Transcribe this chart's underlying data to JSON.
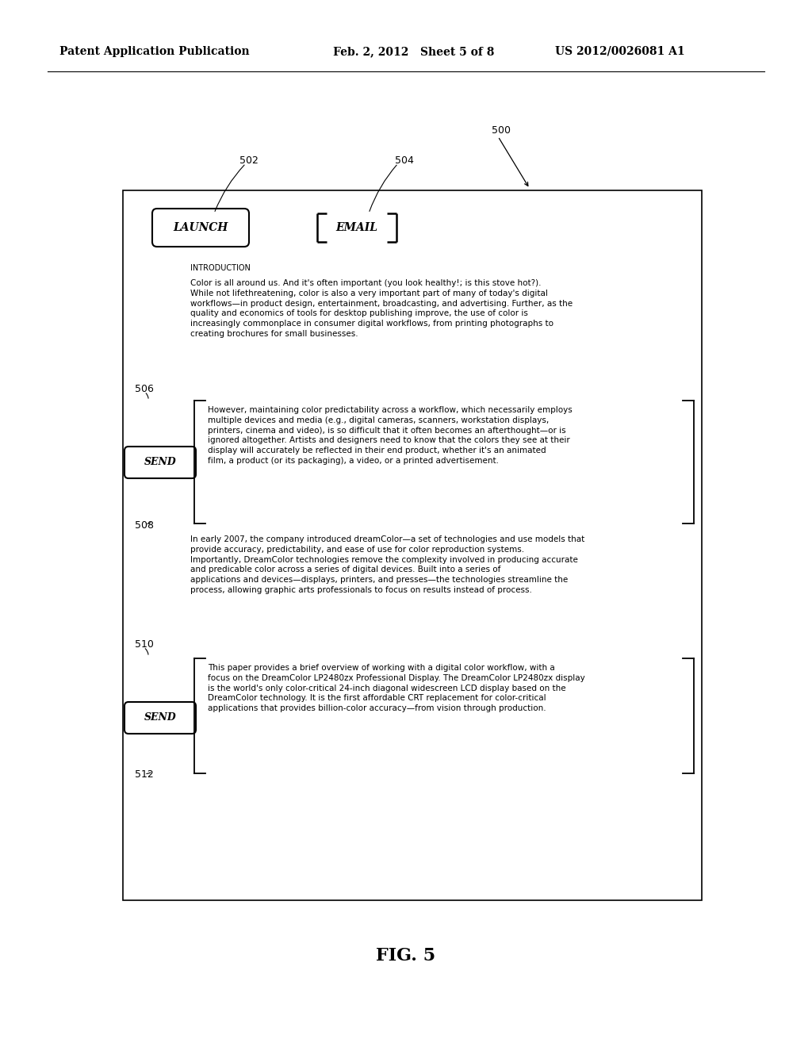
{
  "bg_color": "#ffffff",
  "header_left": "Patent Application Publication",
  "header_mid": "Feb. 2, 2012   Sheet 5 of 8",
  "header_right": "US 2012/0026081 A1",
  "fig_label": "FIG. 5",
  "ref_500": "500",
  "ref_502": "502",
  "ref_504": "504",
  "ref_506": "506",
  "ref_508": "508",
  "ref_510": "510",
  "ref_512": "512",
  "launch_label": "LAUNCH",
  "email_label": "EMAIL",
  "send_label_1": "SEND",
  "send_label_2": "SEND",
  "intro_heading": "INTRODUCTION",
  "para1": "Color is all around us. And it's often important (you look healthy!; is this stove hot?). While not lifethreatening, color is also a very important part of many of today's digital workflows—in product design, entertainment, broadcasting, and advertising. Further, as the quality and economics of tools for desktop publishing improve, the use of color is increasingly commonplace in consumer digital workflows, from printing photographs to creating brochures for small businesses.",
  "para2": "However, maintaining color predictability across a workflow, which necessarily employs multiple devices and media (e.g., digital cameras, scanners, workstation displays, printers, cinema and video), is so difficult that it often becomes an afterthought—or is ignored altogether. Artists and designers need to know that the colors they see at their display will accurately be reflected in their end product, whether it's an animated film, a product (or its packaging), a video, or a printed advertisement.",
  "para3": "In early 2007, the company introduced dreamColor—a set of technologies and use models that provide accuracy, predictability, and ease of use for color reproduction systems. Importantly, DreamColor technologies remove the complexity involved in producing accurate and predicable color across a series of digital devices. Built into a series of applications and devices—displays, printers, and presses—the technologies streamline the process, allowing graphic arts professionals to focus on results instead of process.",
  "para4": "This paper provides a brief overview of working with a digital color workflow, with a focus on the DreamColor LP2480zx Professional Display. The DreamColor LP2480zx display is the world's only color-critical 24-inch diagonal widescreen LCD display based on the DreamColor technology. It is the first affordable CRT replacement for color-critical applications that provides billion-color accuracy—from vision through production."
}
